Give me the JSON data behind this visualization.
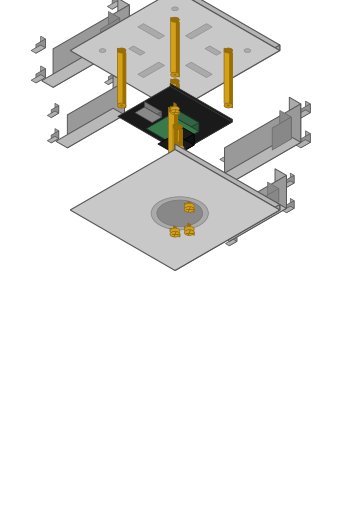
{
  "bg_color": "#ffffff",
  "gray_top": "#c8c8c8",
  "gray_side": "#a0a0a0",
  "gray_front": "#b0b0b0",
  "gray_dark": "#888888",
  "gold": "#d4a017",
  "gold_dark": "#9a6f00",
  "gold_mid": "#c49010",
  "green": "#3a7a4a",
  "black_pcb": "#1a1a1a",
  "figure_width": 3.5,
  "figure_height": 5.12,
  "dpi": 100
}
